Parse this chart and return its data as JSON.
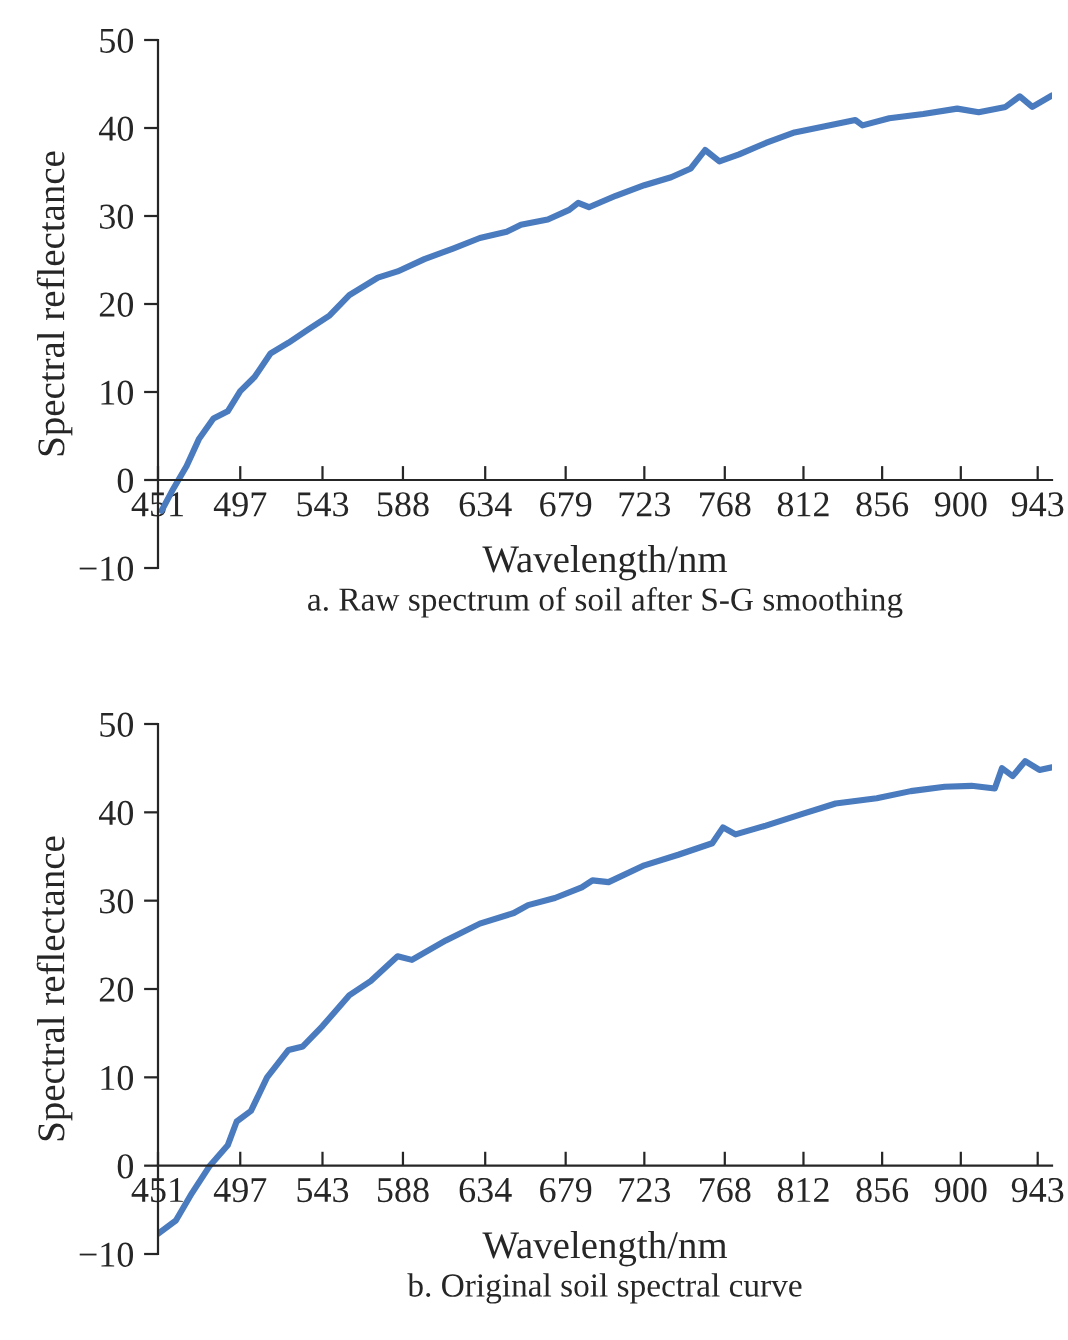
{
  "chart_data": [
    {
      "type": "line",
      "title": "a. Raw spectrum of soil after S-G smoothing",
      "xlabel": "Wavelength/nm",
      "ylabel": "Spectral reflectance",
      "grid": false,
      "marker": "none",
      "line_style": "solid",
      "xlim": [
        451,
        951
      ],
      "xticks": [
        451,
        497,
        543,
        588,
        634,
        679,
        723,
        768,
        812,
        856,
        900,
        943
      ],
      "ylim": [
        -10,
        50
      ],
      "yticks": [
        {
          "value": -10,
          "label": "−10"
        },
        0,
        10,
        20,
        30,
        40,
        50
      ],
      "series": [
        {
          "color": "#4a7bbf",
          "x": [
            453,
            459,
            467,
            474,
            482,
            490,
            497,
            505,
            514,
            524,
            535,
            547,
            558,
            574,
            585,
            600,
            616,
            631,
            646,
            654,
            669,
            681,
            686,
            692,
            707,
            723,
            738,
            749,
            757,
            765,
            776,
            791,
            807,
            822,
            841,
            845,
            860,
            879,
            898,
            910,
            925,
            933,
            940,
            951
          ],
          "values": [
            -3.5,
            -1.2,
            1.6,
            4.7,
            7,
            7.8,
            10.1,
            11.7,
            14.4,
            15.6,
            17.1,
            18.7,
            21,
            23,
            23.7,
            25.1,
            26.3,
            27.5,
            28.2,
            29,
            29.6,
            30.7,
            31.5,
            31,
            32.3,
            33.5,
            34.4,
            35.4,
            37.5,
            36.2,
            37,
            38.3,
            39.5,
            40.1,
            40.9,
            40.3,
            41.1,
            41.6,
            42.2,
            41.8,
            42.4,
            43.6,
            42.4,
            43.7
          ]
        }
      ]
    },
    {
      "type": "line",
      "title": "b. Original soil spectral curve",
      "xlabel": "Wavelength/nm",
      "ylabel": "Spectral reflectance",
      "grid": false,
      "marker": "none",
      "line_style": "solid",
      "xlim": [
        451,
        951
      ],
      "xticks": [
        451,
        497,
        543,
        588,
        634,
        679,
        723,
        768,
        812,
        856,
        900,
        943
      ],
      "ylim": [
        -10,
        50
      ],
      "yticks": [
        {
          "value": -10,
          "label": "−10"
        },
        0,
        10,
        20,
        30,
        40,
        50
      ],
      "series": [
        {
          "color": "#4a7bbf",
          "x": [
            451,
            461,
            470,
            480,
            490,
            495,
            503,
            512,
            524,
            532,
            543,
            558,
            570,
            585,
            593,
            612,
            631,
            650,
            658,
            673,
            688,
            694,
            703,
            723,
            742,
            761,
            767,
            774,
            791,
            811,
            830,
            853,
            872,
            891,
            906,
            919,
            923,
            929,
            936,
            944,
            951
          ],
          "values": [
            -7.7,
            -6.2,
            -3.1,
            0,
            2.3,
            5,
            6.2,
            10,
            13.1,
            13.5,
            15.8,
            19.3,
            20.9,
            23.7,
            23.3,
            25.5,
            27.4,
            28.6,
            29.5,
            30.3,
            31.5,
            32.3,
            32.1,
            34,
            35.2,
            36.5,
            38.3,
            37.5,
            38.5,
            39.8,
            41,
            41.6,
            42.4,
            42.9,
            43,
            42.7,
            45,
            44.1,
            45.8,
            44.8,
            45.1
          ]
        }
      ]
    }
  ]
}
